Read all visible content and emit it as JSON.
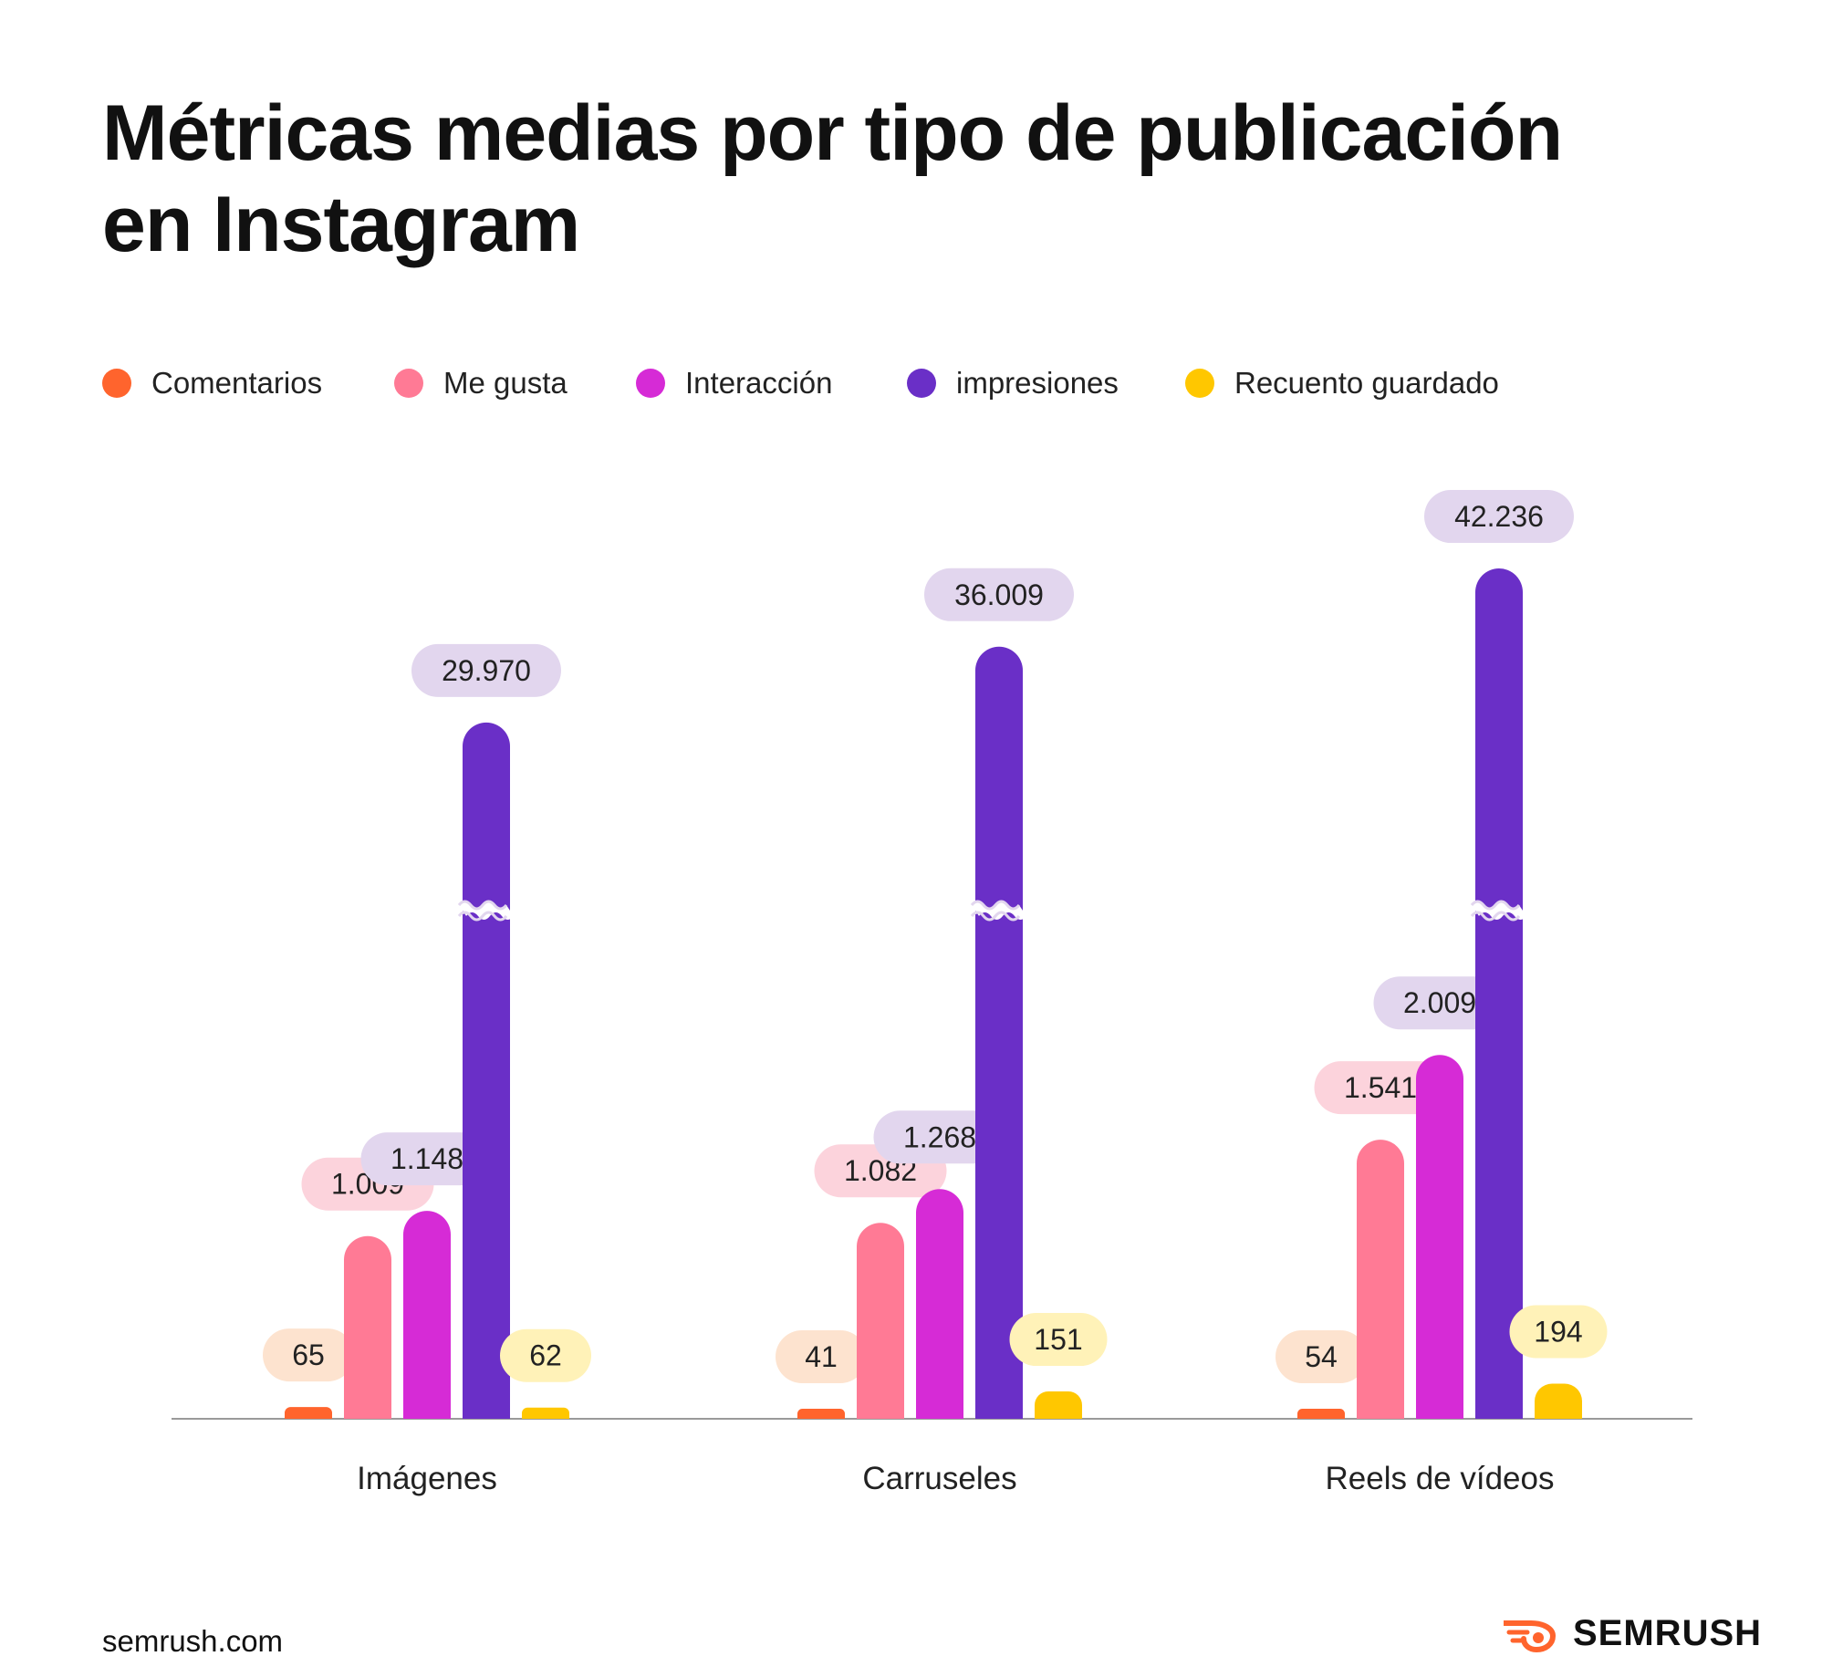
{
  "title_line1": "Métricas medias por tipo de publicación",
  "title_line2": "en Instagram",
  "footer": {
    "url": "semrush.com",
    "brand": "SEMRUSH"
  },
  "legend": [
    {
      "label": "Comentarios",
      "color": "#FF642D"
    },
    {
      "label": "Me gusta",
      "color": "#FF7A95"
    },
    {
      "label": "Interacción",
      "color": "#D62BD6"
    },
    {
      "label": "impresiones",
      "color": "#6A2FC7"
    },
    {
      "label": "Recuento guardado",
      "color": "#FFC700"
    }
  ],
  "chart_data": {
    "type": "bar",
    "title": "Métricas medias por tipo de publicación en Instagram",
    "categories": [
      "Imágenes",
      "Carruseles",
      "Reels de vídeos"
    ],
    "axis_break": "impresiones",
    "series": [
      {
        "name": "Comentarios",
        "color": "#FF642D",
        "label_bg": "#FDE3CF",
        "values": [
          65,
          41,
          54
        ],
        "labels": [
          "65",
          "41",
          "54"
        ]
      },
      {
        "name": "Me gusta",
        "color": "#FF7A95",
        "label_bg": "#FCD3DC",
        "values": [
          1009,
          1082,
          1541
        ],
        "labels": [
          "1.009",
          "1.082",
          "1.541"
        ]
      },
      {
        "name": "Interacción",
        "color": "#D62BD6",
        "label_bg": "#E2D6EE",
        "values": [
          1148,
          1268,
          2009
        ],
        "labels": [
          "1.148",
          "1.268",
          "2.009"
        ]
      },
      {
        "name": "impresiones",
        "color": "#6A2FC7",
        "label_bg": "#E2D6EE",
        "values": [
          29970,
          36009,
          42236
        ],
        "labels": [
          "29.970",
          "36.009",
          "42.236"
        ]
      },
      {
        "name": "Recuento guardado",
        "color": "#FFC700",
        "label_bg": "#FFF2B8",
        "values": [
          62,
          151,
          194
        ],
        "labels": [
          "62",
          "151",
          "194"
        ]
      }
    ]
  }
}
